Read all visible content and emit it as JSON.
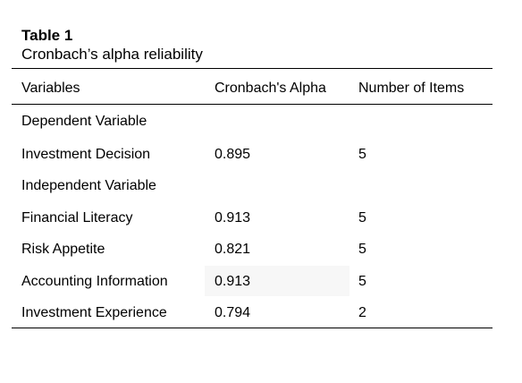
{
  "caption": {
    "label": "Table 1",
    "title": "Cronbach’s alpha reliability"
  },
  "headers": {
    "variables": "Variables",
    "alpha": "Cronbach's Alpha",
    "items": "Number of Items"
  },
  "rows": [
    {
      "variable": "Dependent Variable",
      "alpha": "",
      "items": ""
    },
    {
      "variable": "Investment Decision",
      "alpha": "0.895",
      "items": "5"
    },
    {
      "variable": "Independent Variable",
      "alpha": "",
      "items": ""
    },
    {
      "variable": "Financial Literacy",
      "alpha": "0.913",
      "items": "5"
    },
    {
      "variable": "Risk Appetite",
      "alpha": "0.821",
      "items": "5"
    },
    {
      "variable": "Accounting Information",
      "alpha": "0.913",
      "items": "5"
    },
    {
      "variable": "Investment Experience",
      "alpha": "0.794",
      "items": "2"
    }
  ]
}
